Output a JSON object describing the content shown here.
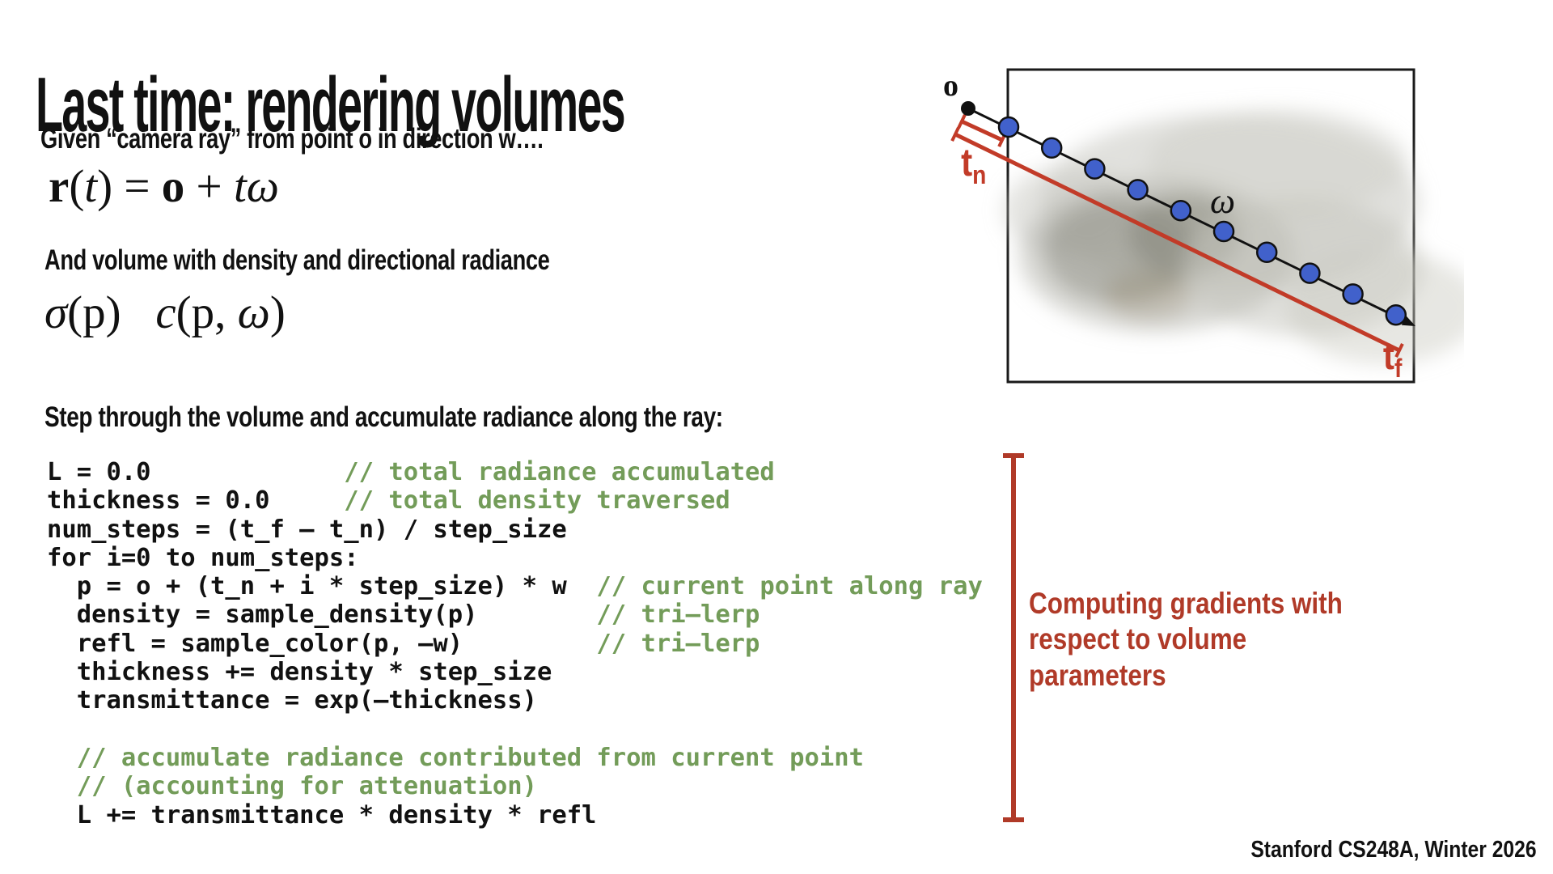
{
  "title": "Last time: rendering volumes",
  "intro": "Given “camera ray” from point o in direction w….",
  "volume_line": "And volume with density and directional radiance",
  "step_line": "Step through the volume and accumulate radiance along the ray:",
  "formula_ray": [
    {
      "t": "r",
      "s": "bold"
    },
    {
      "t": "(",
      "s": "roman"
    },
    {
      "t": "t",
      "s": "italic"
    },
    {
      "t": ") = ",
      "s": "roman"
    },
    {
      "t": "o",
      "s": "bold"
    },
    {
      "t": " + ",
      "s": "roman"
    },
    {
      "t": "t",
      "s": "italic"
    },
    {
      "t": "ω",
      "s": "italic"
    }
  ],
  "formula_density": [
    {
      "t": "σ",
      "s": "italic"
    },
    {
      "t": "(p)",
      "s": "roman"
    },
    {
      "t": "   ",
      "s": "roman"
    },
    {
      "t": "c",
      "s": "italic"
    },
    {
      "t": "(p, ",
      "s": "roman"
    },
    {
      "t": "ω",
      "s": "italic"
    },
    {
      "t": ")",
      "s": "roman"
    }
  ],
  "code": {
    "lines": [
      {
        "code": "L = 0.0             ",
        "comment": "// total radiance accumulated"
      },
      {
        "code": "thickness = 0.0     ",
        "comment": "// total density traversed"
      },
      {
        "code": "num_steps = (t_f – t_n) / step_size",
        "comment": ""
      },
      {
        "code": "for i=0 to num_steps:",
        "comment": ""
      },
      {
        "code": "  p = o + (t_n + i * step_size) * w  ",
        "comment": "// current point along ray"
      },
      {
        "code": "  density = sample_density(p)        ",
        "comment": "// tri–lerp"
      },
      {
        "code": "  refl = sample_color(p, –w)         ",
        "comment": "// tri–lerp"
      },
      {
        "code": "  thickness += density * step_size",
        "comment": ""
      },
      {
        "code": "  transmittance = exp(–thickness)",
        "comment": ""
      },
      {
        "code": "",
        "comment": ""
      },
      {
        "code": "",
        "comment": "  // accumulate radiance contributed from current point"
      },
      {
        "code": "",
        "comment": "  // (accounting for attenuation)"
      },
      {
        "code": "  L += transmittance * density * refl",
        "comment": ""
      }
    ]
  },
  "side_note": "Computing gradients with respect to volume parameters",
  "diagram": {
    "origin_label": "o",
    "omega_label": "ω",
    "t_near": {
      "main": "t",
      "sub": "n"
    },
    "t_far": {
      "main": "t",
      "sub": "f"
    },
    "num_samples": 10
  },
  "footer": "Stanford CS248A, Winter 2026",
  "colors": {
    "accent_red": "#b03a28",
    "diagram_red": "#c23b28",
    "comment_green": "#739c59",
    "sample_blue": "#4161cb"
  }
}
